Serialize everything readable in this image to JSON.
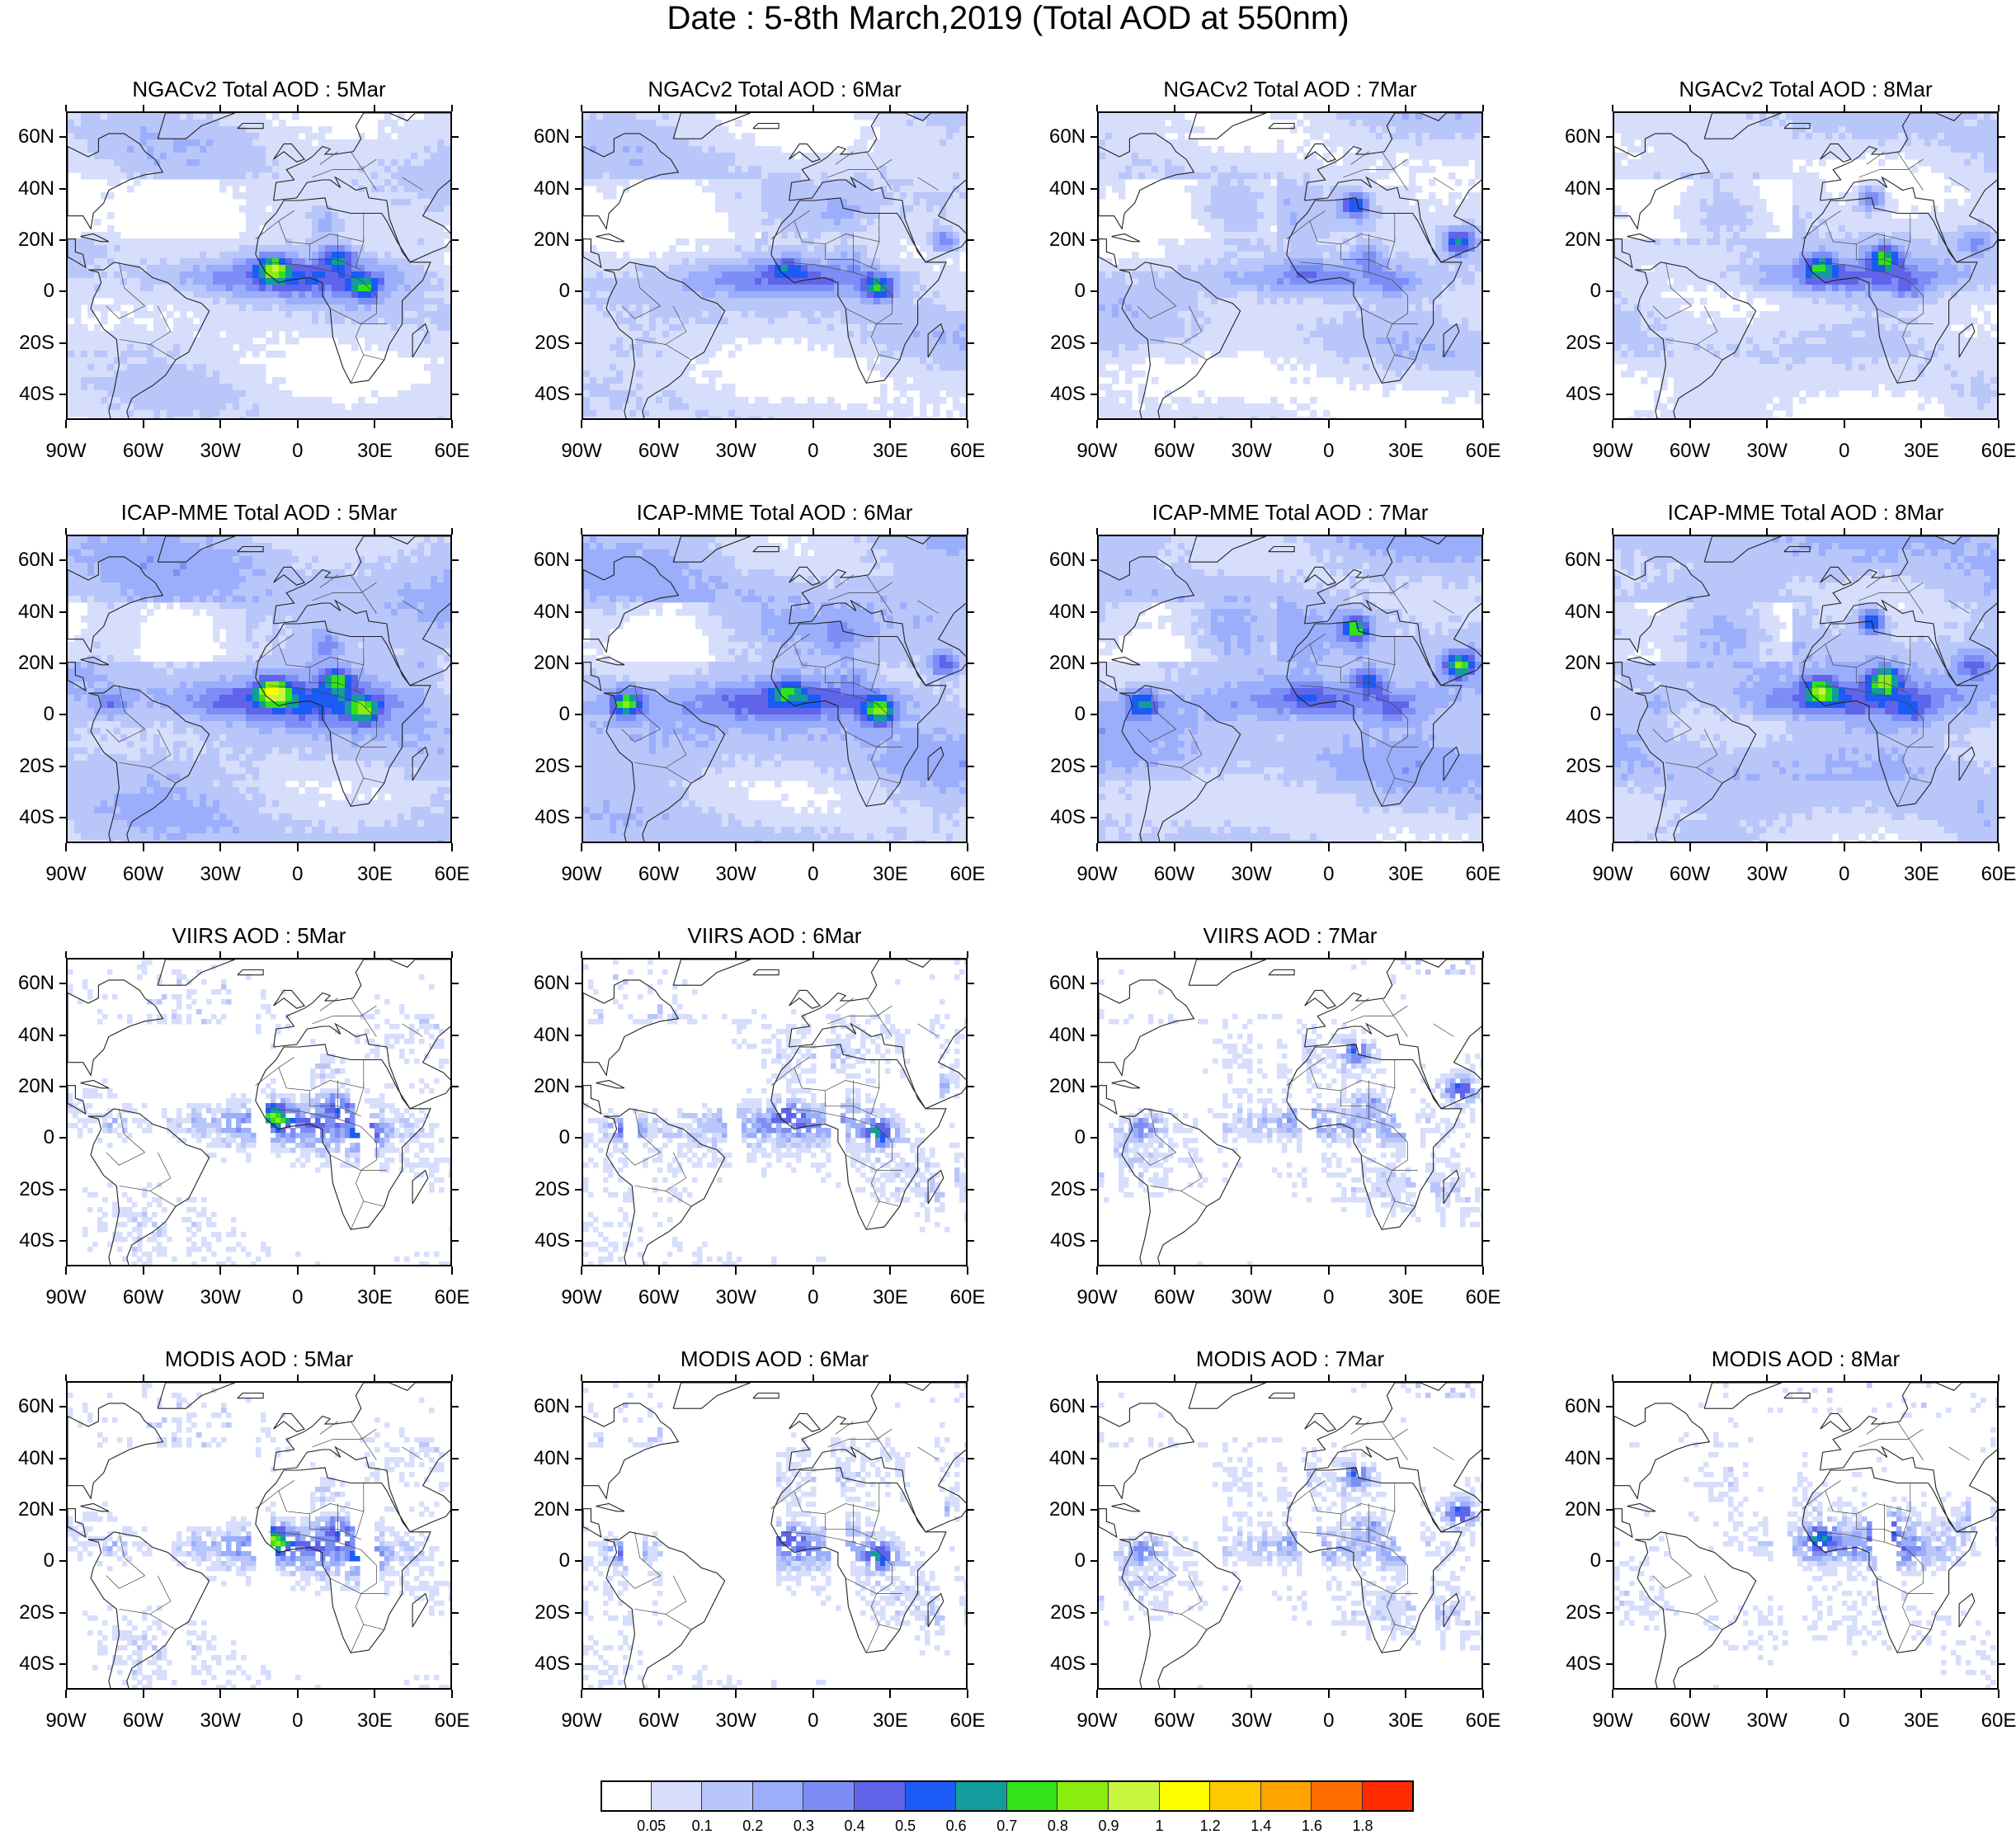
{
  "title": "Date : 5-8th March,2019 (Total AOD at 550nm)",
  "lat_labels": [
    "60N",
    "40N",
    "20N",
    "0",
    "20S",
    "40S"
  ],
  "lat_values": [
    60,
    40,
    20,
    0,
    -20,
    -40
  ],
  "lon_labels": [
    "90W",
    "60W",
    "30W",
    "0",
    "30E",
    "60E"
  ],
  "lon_values": [
    -90,
    -60,
    -30,
    0,
    30,
    60
  ],
  "extent": {
    "lon_min": -90,
    "lon_max": 60,
    "lat_min": -50,
    "lat_max": 70
  },
  "palette": [
    "#ffffff",
    "#d6defc",
    "#b9c6fa",
    "#9aaefb",
    "#7c8ef6",
    "#5f64ea",
    "#1c5bf6",
    "#139c9c",
    "#32e21a",
    "#8bec10",
    "#c8f53e",
    "#ffff00",
    "#ffc900",
    "#ffa300",
    "#ff6d00",
    "#ff2a00"
  ],
  "colorbar": {
    "labels": [
      "0.05",
      "0.1",
      "0.2",
      "0.3",
      "0.4",
      "0.5",
      "0.6",
      "0.7",
      "0.8",
      "0.9",
      "1",
      "1.2",
      "1.4",
      "1.6",
      "1.8"
    ]
  },
  "panels": [
    {
      "title": "NGACv2 Total AOD : 5Mar",
      "row": 0,
      "col": 0,
      "source": "NGACv2"
    },
    {
      "title": "NGACv2 Total AOD : 6Mar",
      "row": 0,
      "col": 1,
      "source": "NGACv2"
    },
    {
      "title": "NGACv2 Total AOD : 7Mar",
      "row": 0,
      "col": 2,
      "source": "NGACv2"
    },
    {
      "title": "NGACv2 Total AOD : 8Mar",
      "row": 0,
      "col": 3,
      "source": "NGACv2"
    },
    {
      "title": "ICAP-MME Total AOD : 5Mar",
      "row": 1,
      "col": 0,
      "source": "ICAP-MME"
    },
    {
      "title": "ICAP-MME Total AOD : 6Mar",
      "row": 1,
      "col": 1,
      "source": "ICAP-MME"
    },
    {
      "title": "ICAP-MME Total AOD : 7Mar",
      "row": 1,
      "col": 2,
      "source": "ICAP-MME"
    },
    {
      "title": "ICAP-MME Total AOD : 8Mar",
      "row": 1,
      "col": 3,
      "source": "ICAP-MME"
    },
    {
      "title": "VIIRS AOD : 5Mar",
      "row": 2,
      "col": 0,
      "source": "VIIRS"
    },
    {
      "title": "VIIRS AOD : 6Mar",
      "row": 2,
      "col": 1,
      "source": "VIIRS"
    },
    {
      "title": "VIIRS AOD : 7Mar",
      "row": 2,
      "col": 2,
      "source": "VIIRS"
    },
    {
      "title": "MODIS AOD : 5Mar",
      "row": 3,
      "col": 0,
      "source": "MODIS"
    },
    {
      "title": "MODIS AOD : 6Mar",
      "row": 3,
      "col": 1,
      "source": "MODIS"
    },
    {
      "title": "MODIS AOD : 7Mar",
      "row": 3,
      "col": 2,
      "source": "MODIS"
    },
    {
      "title": "MODIS AOD : 8Mar",
      "row": 3,
      "col": 3,
      "source": "MODIS"
    }
  ]
}
